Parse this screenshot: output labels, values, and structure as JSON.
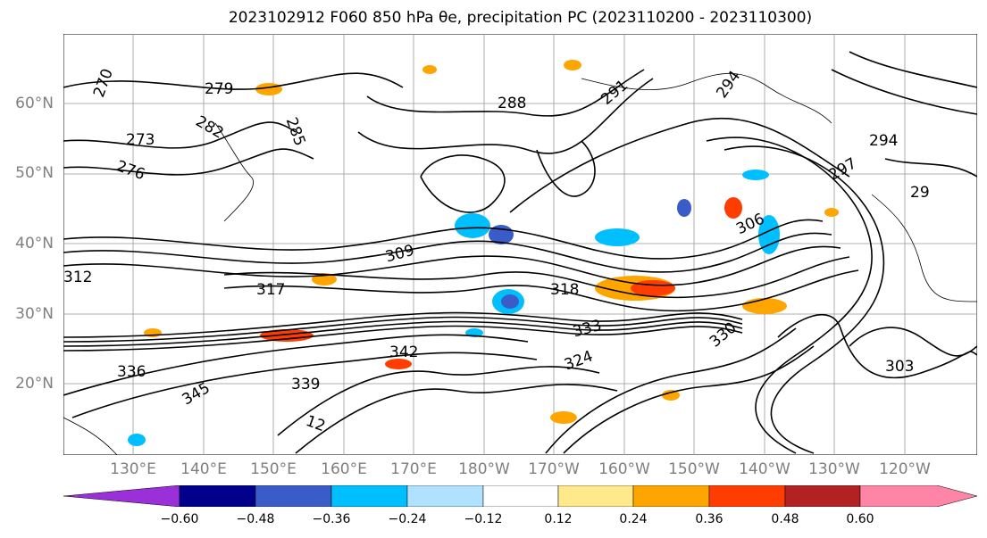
{
  "title": "2023102912 F060 850 hPa θe, precipitation PC (2023110200 - 2023110300)",
  "map": {
    "lat_labels": [
      "60°N",
      "50°N",
      "40°N",
      "30°N",
      "20°N"
    ],
    "lon_labels": [
      "130°E",
      "140°E",
      "150°E",
      "160°E",
      "170°E",
      "180°W",
      "170°W",
      "160°W",
      "150°W",
      "140°W",
      "130°W",
      "120°W"
    ],
    "contour_labels": [
      "270",
      "279",
      "273",
      "276",
      "282",
      "285",
      "288",
      "291",
      "294",
      "297",
      "29",
      "303",
      "306",
      "309",
      "312",
      "317",
      "318",
      "324",
      "330",
      "333",
      "336",
      "339",
      "342",
      "345",
      "12",
      "294"
    ],
    "contour_color": "#000000",
    "grid_color": "#999999"
  },
  "colorbar": {
    "tick_labels": [
      "−0.60",
      "−0.48",
      "−0.36",
      "−0.24",
      "−0.12",
      "0.12",
      "0.24",
      "0.36",
      "0.48",
      "0.60"
    ],
    "colors": [
      "#9b30d9",
      "#00008b",
      "#3a5cc8",
      "#00bfff",
      "#b0e2ff",
      "#ffffff",
      "#ffe98a",
      "#ffa500",
      "#ff3d00",
      "#b22222",
      "#ff85a6",
      "#ff85a6"
    ]
  }
}
